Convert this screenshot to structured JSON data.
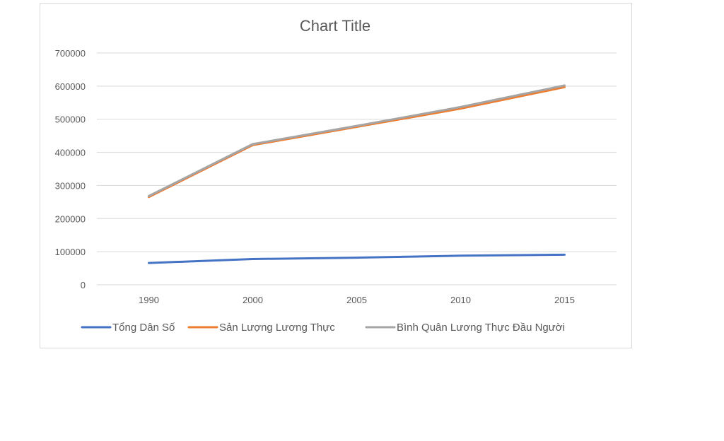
{
  "chart_data": {
    "type": "line",
    "title": "Chart Title",
    "xlabel": "",
    "ylabel": "",
    "categories": [
      "1990",
      "2000",
      "2005",
      "2010",
      "2015"
    ],
    "ylim": [
      0,
      700000
    ],
    "yticks": [
      "0",
      "100000",
      "200000",
      "300000",
      "400000",
      "500000",
      "600000",
      "700000"
    ],
    "grid": true,
    "legend_position": "bottom",
    "series": [
      {
        "name": "Tổng Dân Số",
        "color": "#4472C4",
        "values": [
          66000,
          78000,
          82000,
          88000,
          91000
        ]
      },
      {
        "name": "Sản Lượng Lương Thực",
        "color": "#ED7D31",
        "values": [
          265000,
          422000,
          477000,
          532000,
          597000
        ]
      },
      {
        "name": "Bình Quân Lương Thực Đầu Người",
        "color": "#A5A5A5",
        "values": [
          268000,
          425000,
          480000,
          537000,
          602000
        ]
      }
    ]
  }
}
